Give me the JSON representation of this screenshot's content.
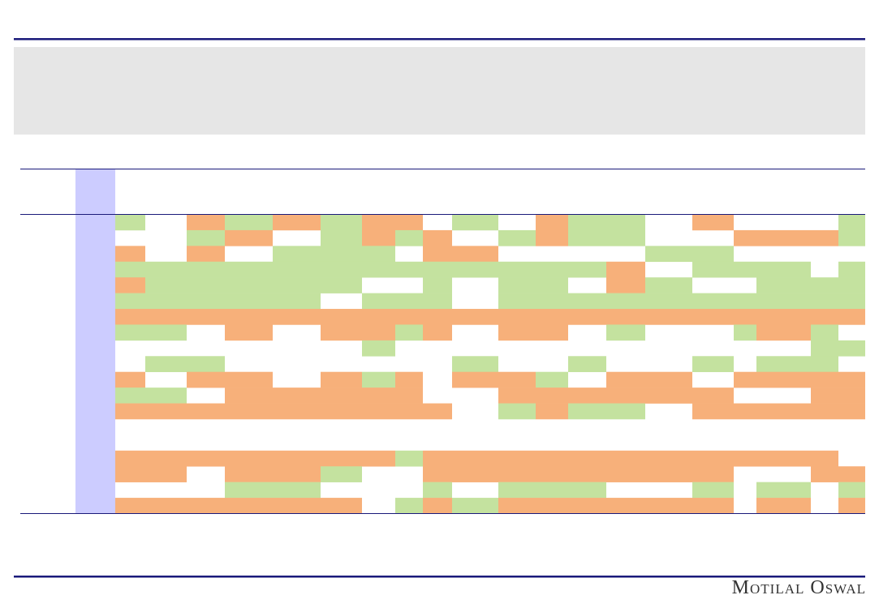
{
  "footer": {
    "brand": "Motilal Oswal"
  }
}
